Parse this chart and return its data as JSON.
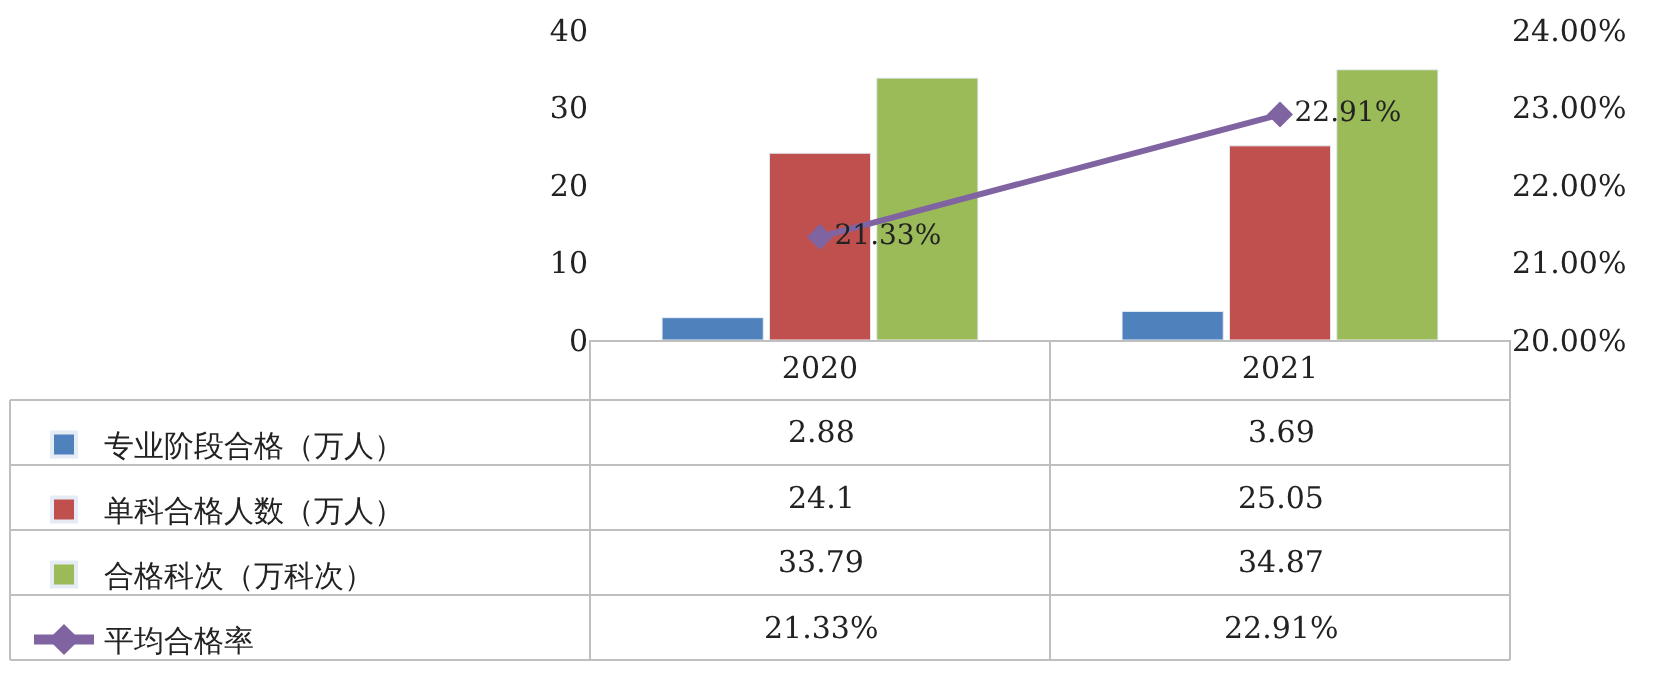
{
  "chart_data": {
    "type": "bar",
    "categories": [
      "2020",
      "2021"
    ],
    "series": [
      {
        "name": "专业阶段合格（万人）",
        "color": "#4f81bd",
        "values": [
          2.88,
          3.69
        ],
        "value_labels": [
          "2.88",
          "3.69"
        ]
      },
      {
        "name": "单科合格人数（万人）",
        "color": "#c0504d",
        "values": [
          24.1,
          25.05
        ],
        "value_labels": [
          "24.1",
          "25.05"
        ]
      },
      {
        "name": "合格科次（万科次）",
        "color": "#9bbb59",
        "values": [
          33.79,
          34.87
        ],
        "value_labels": [
          "33.79",
          "34.87"
        ]
      },
      {
        "name": "平均合格率",
        "type": "line",
        "axis": "y2",
        "color": "#8064a2",
        "marker": "diamond",
        "values": [
          21.33,
          22.91
        ],
        "value_labels": [
          "21.33%",
          "22.91%"
        ]
      }
    ],
    "ylim": [
      0,
      40
    ],
    "yticks": [
      0,
      10,
      20,
      30,
      40
    ],
    "y2lim": [
      20,
      24
    ],
    "y2ticks": [
      {
        "value": 20,
        "label": "20.00%"
      },
      {
        "value": 21,
        "label": "21.00%"
      },
      {
        "value": 22,
        "label": "22.00%"
      },
      {
        "value": 23,
        "label": "23.00%"
      },
      {
        "value": 24,
        "label": "24.00%"
      }
    ],
    "legend": "bottom left"
  }
}
